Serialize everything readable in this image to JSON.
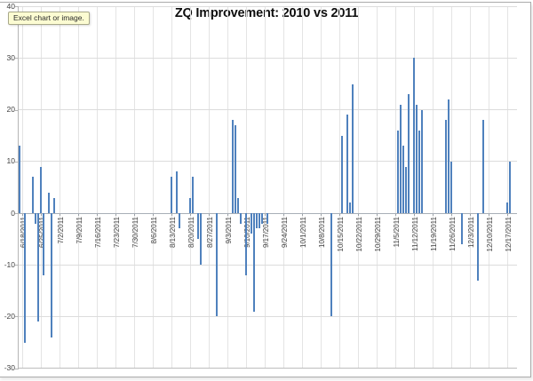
{
  "tooltip": {
    "text": "Excel chart or image."
  },
  "colors": {
    "bar": "#4F81BD",
    "gridline": "#DCDCDC",
    "axis_line": "#B5B5B5",
    "label_text": "#3F3F3F",
    "tooltip_bg": "#FCFCD2"
  },
  "chart_data": {
    "type": "bar",
    "title": "ZQ Improvement: 2010 vs 2011",
    "xlabel": "",
    "ylabel": "",
    "grid": true,
    "legend": "none",
    "ylim": [
      -30,
      40
    ],
    "y_tick_interval": 10,
    "y_tick_labels": [
      "40",
      "30",
      "20",
      "10",
      "0",
      "-10",
      "-20",
      "-30"
    ],
    "x_tick_labels": [
      "6/18/2011",
      "6/25/2011",
      "7/2/2011",
      "7/9/2011",
      "7/16/2011",
      "7/23/2011",
      "7/30/2011",
      "8/6/2011",
      "8/13/2011",
      "8/20/2011",
      "8/27/2011",
      "9/3/2011",
      "9/10/2011",
      "9/17/2011",
      "9/24/2011",
      "10/1/2011",
      "10/8/2011",
      "10/15/2011",
      "10/22/2011",
      "10/29/2011",
      "11/5/2011",
      "11/12/2011",
      "11/19/2011",
      "11/26/2011",
      "12/3/2011",
      "12/10/2011",
      "12/17/2011"
    ],
    "x_axis_note": "daily bars; day_offset 0 = axis origin (~6/17/2011), weekly tick labels start at day_offset 1 (6/18/2011), 7 days per tick",
    "series": [
      {
        "name": "ZQ Improvement",
        "points_day_offset_value": [
          [
            0,
            13
          ],
          [
            2,
            -25
          ],
          [
            5,
            7
          ],
          [
            6,
            -2
          ],
          [
            7,
            -21
          ],
          [
            8,
            9
          ],
          [
            9,
            -12
          ],
          [
            11,
            4
          ],
          [
            12,
            -24
          ],
          [
            13,
            3
          ],
          [
            57,
            7
          ],
          [
            59,
            8
          ],
          [
            60,
            -3
          ],
          [
            64,
            3
          ],
          [
            65,
            7
          ],
          [
            67,
            -5
          ],
          [
            68,
            -10
          ],
          [
            74,
            -20
          ],
          [
            80,
            18
          ],
          [
            81,
            17
          ],
          [
            82,
            3
          ],
          [
            83,
            -2
          ],
          [
            85,
            -12
          ],
          [
            87,
            -4
          ],
          [
            88,
            -19
          ],
          [
            89,
            -3
          ],
          [
            90,
            -3
          ],
          [
            91,
            -2
          ],
          [
            93,
            -2
          ],
          [
            117,
            -20
          ],
          [
            121,
            15
          ],
          [
            123,
            19
          ],
          [
            124,
            2
          ],
          [
            125,
            25
          ],
          [
            142,
            16
          ],
          [
            143,
            21
          ],
          [
            144,
            13
          ],
          [
            145,
            9
          ],
          [
            146,
            23
          ],
          [
            148,
            30
          ],
          [
            149,
            21
          ],
          [
            150,
            16
          ],
          [
            151,
            20
          ],
          [
            160,
            18
          ],
          [
            161,
            22
          ],
          [
            162,
            10
          ],
          [
            166,
            -6
          ],
          [
            172,
            -13
          ],
          [
            174,
            18
          ],
          [
            183,
            2
          ],
          [
            184,
            10
          ]
        ]
      }
    ]
  }
}
